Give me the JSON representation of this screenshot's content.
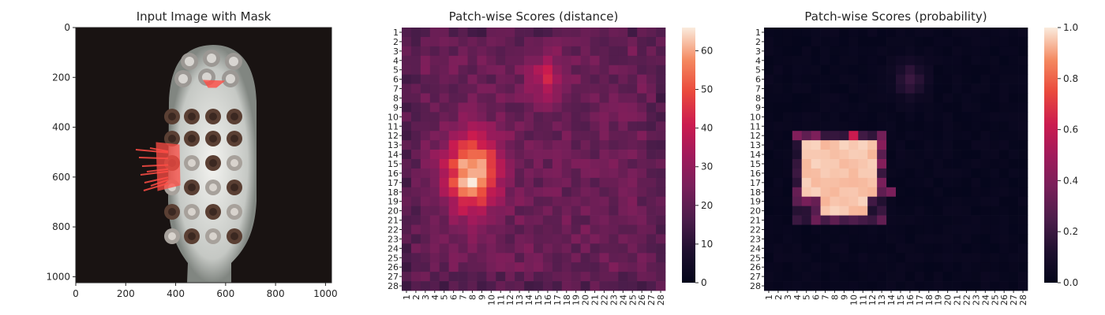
{
  "figure": {
    "panels": [
      {
        "title": "Input Image with Mask",
        "kind": "image",
        "x_ticks": [
          0,
          200,
          400,
          600,
          800,
          1000
        ],
        "y_ticks": [
          0,
          200,
          400,
          600,
          800,
          1000
        ],
        "xlim": [
          0,
          1024
        ],
        "ylim": [
          1024,
          0
        ]
      },
      {
        "title": "Patch-wise Scores (distance)",
        "kind": "heatmap",
        "colorbar_ticks": [
          "0",
          "10",
          "20",
          "30",
          "40",
          "50",
          "60"
        ],
        "colorbar_range": [
          0,
          66
        ]
      },
      {
        "title": "Patch-wise Scores (probability)",
        "kind": "heatmap",
        "colorbar_ticks": [
          "0.0",
          "0.2",
          "0.4",
          "0.6",
          "0.8",
          "1.0"
        ],
        "colorbar_range": [
          0,
          1
        ]
      }
    ]
  },
  "chart_data": [
    {
      "type": "image",
      "title": "Input Image with Mask",
      "xlabel": "",
      "ylabel": "",
      "xlim": [
        0,
        1024
      ],
      "ylim": [
        1024,
        0
      ],
      "colors": {
        "background": "#191312",
        "mask": "#ff4d45"
      }
    },
    {
      "type": "heatmap",
      "title": "Patch-wise Scores (distance)",
      "x": [
        "1",
        "2",
        "3",
        "4",
        "5",
        "6",
        "7",
        "8",
        "9",
        "10",
        "11",
        "12",
        "13",
        "14",
        "15",
        "16",
        "17",
        "18",
        "19",
        "20",
        "21",
        "22",
        "23",
        "24",
        "25",
        "26",
        "27",
        "28"
      ],
      "y": [
        "1",
        "2",
        "3",
        "4",
        "5",
        "6",
        "7",
        "8",
        "9",
        "10",
        "11",
        "12",
        "13",
        "14",
        "15",
        "16",
        "17",
        "18",
        "19",
        "20",
        "21",
        "22",
        "23",
        "24",
        "25",
        "26",
        "27",
        "28"
      ],
      "vmin": 0,
      "vmax": 66,
      "colormap": "rocket",
      "regions": [
        {
          "row": 16,
          "col": 8,
          "peak": 65,
          "sigma_row": 2.8,
          "sigma_col": 2.0
        },
        {
          "row": 6,
          "col": 16,
          "peak": 40,
          "sigma_row": 1.6,
          "sigma_col": 1.3
        }
      ],
      "baseline": 22,
      "xlabel": "",
      "ylabel": ""
    },
    {
      "type": "heatmap",
      "title": "Patch-wise Scores (probability)",
      "x": [
        "1",
        "2",
        "3",
        "4",
        "5",
        "6",
        "7",
        "8",
        "9",
        "10",
        "11",
        "12",
        "13",
        "14",
        "15",
        "16",
        "17",
        "18",
        "19",
        "20",
        "21",
        "22",
        "23",
        "24",
        "25",
        "26",
        "27",
        "28"
      ],
      "y": [
        "1",
        "2",
        "3",
        "4",
        "5",
        "6",
        "7",
        "8",
        "9",
        "10",
        "11",
        "12",
        "13",
        "14",
        "15",
        "16",
        "17",
        "18",
        "19",
        "20",
        "21",
        "22",
        "23",
        "24",
        "25",
        "26",
        "27",
        "28"
      ],
      "vmin": 0,
      "vmax": 1,
      "colormap": "rocket",
      "saturated_block": {
        "row_start": 13,
        "row_end": 18,
        "col_start": 5,
        "col_end": 12,
        "value": 0.97
      },
      "saturated_block_lower": {
        "row_start": 19,
        "row_end": 20,
        "col_start": 7,
        "col_end": 11,
        "value": 0.97
      },
      "secondary_peak": {
        "row": 6,
        "col": 16,
        "value": 0.18
      },
      "xlabel": "",
      "ylabel": ""
    }
  ]
}
